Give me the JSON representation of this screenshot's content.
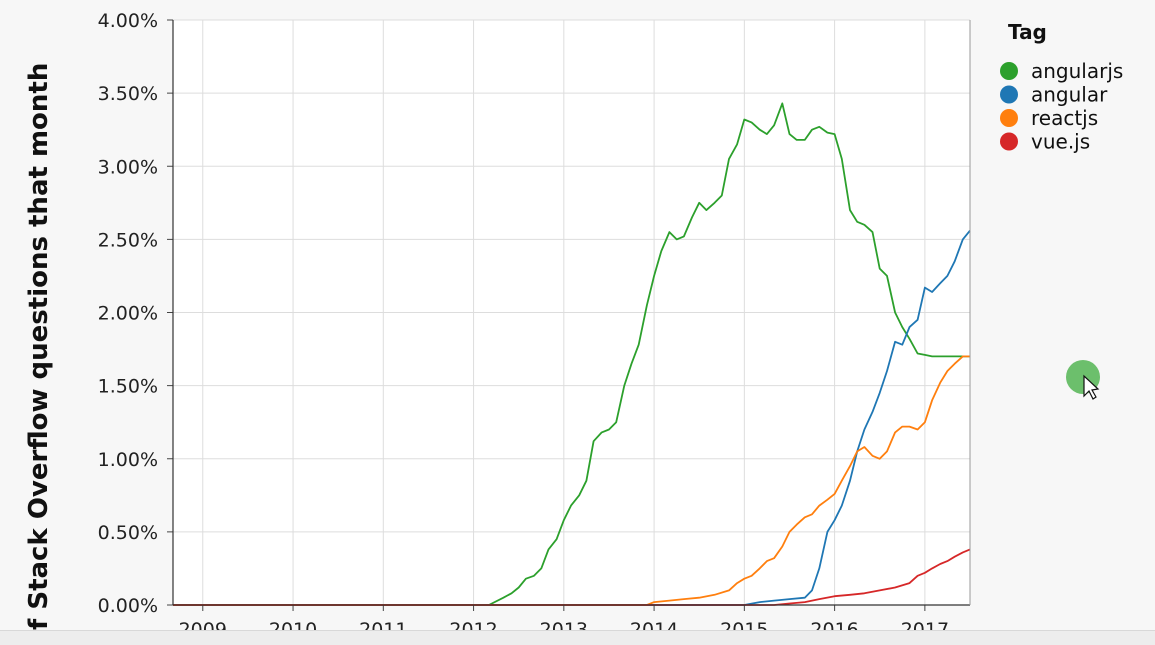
{
  "chart_data": {
    "type": "line",
    "ylabel": "f Stack Overflow questions that month",
    "ylim": [
      0,
      4.0
    ],
    "yticks": [
      "0.00%",
      "0.50%",
      "1.00%",
      "1.50%",
      "2.00%",
      "2.50%",
      "3.00%",
      "3.50%",
      "4.00%"
    ],
    "xlim": [
      2008.67,
      2017.5
    ],
    "xticks": [
      "2009",
      "2010",
      "2011",
      "2012",
      "2013",
      "2014",
      "2015",
      "2016",
      "2017"
    ],
    "grid": true,
    "legend": {
      "title": "Tag",
      "placement": "right"
    },
    "series": [
      {
        "name": "angularjs",
        "color": "#2ca02c",
        "x": [
          2008.67,
          2012.17,
          2012.33,
          2012.42,
          2012.5,
          2012.58,
          2012.67,
          2012.75,
          2012.83,
          2012.92,
          2013.0,
          2013.08,
          2013.17,
          2013.25,
          2013.33,
          2013.42,
          2013.5,
          2013.58,
          2013.67,
          2013.75,
          2013.83,
          2013.92,
          2014.0,
          2014.08,
          2014.17,
          2014.25,
          2014.33,
          2014.42,
          2014.5,
          2014.58,
          2014.67,
          2014.75,
          2014.83,
          2014.92,
          2015.0,
          2015.08,
          2015.17,
          2015.25,
          2015.33,
          2015.42,
          2015.5,
          2015.58,
          2015.67,
          2015.75,
          2015.83,
          2015.92,
          2016.0,
          2016.08,
          2016.17,
          2016.25,
          2016.33,
          2016.42,
          2016.5,
          2016.58,
          2016.67,
          2016.75,
          2016.83,
          2016.92,
          2017.0,
          2017.08,
          2017.17,
          2017.25,
          2017.33,
          2017.42,
          2017.5
        ],
        "y": [
          0,
          0,
          0.05,
          0.08,
          0.12,
          0.18,
          0.2,
          0.25,
          0.38,
          0.45,
          0.58,
          0.68,
          0.75,
          0.85,
          1.12,
          1.18,
          1.2,
          1.25,
          1.5,
          1.65,
          1.78,
          2.05,
          2.25,
          2.42,
          2.55,
          2.5,
          2.52,
          2.65,
          2.75,
          2.7,
          2.75,
          2.8,
          3.05,
          3.15,
          3.32,
          3.3,
          3.25,
          3.22,
          3.28,
          3.43,
          3.22,
          3.18,
          3.18,
          3.25,
          3.27,
          3.23,
          3.22,
          3.05,
          2.7,
          2.62,
          2.6,
          2.55,
          2.3,
          2.25,
          2.0,
          1.9,
          1.82,
          1.72,
          1.71,
          1.7,
          1.7,
          1.7,
          1.7,
          1.7,
          1.7
        ]
      },
      {
        "name": "angular",
        "color": "#1f77b4",
        "x": [
          2008.67,
          2015.0,
          2015.17,
          2015.33,
          2015.5,
          2015.67,
          2015.75,
          2015.83,
          2015.92,
          2016.0,
          2016.08,
          2016.17,
          2016.25,
          2016.33,
          2016.42,
          2016.5,
          2016.58,
          2016.67,
          2016.75,
          2016.83,
          2016.92,
          2017.0,
          2017.08,
          2017.17,
          2017.25,
          2017.33,
          2017.42,
          2017.5
        ],
        "y": [
          0,
          0,
          0.02,
          0.03,
          0.04,
          0.05,
          0.1,
          0.25,
          0.5,
          0.58,
          0.68,
          0.85,
          1.05,
          1.2,
          1.32,
          1.45,
          1.6,
          1.8,
          1.78,
          1.9,
          1.95,
          2.17,
          2.14,
          2.2,
          2.25,
          2.35,
          2.5,
          2.56
        ]
      },
      {
        "name": "reactjs",
        "color": "#ff7f0e",
        "x": [
          2008.67,
          2013.92,
          2014.0,
          2014.17,
          2014.33,
          2014.5,
          2014.67,
          2014.83,
          2014.92,
          2015.0,
          2015.08,
          2015.17,
          2015.25,
          2015.33,
          2015.42,
          2015.5,
          2015.58,
          2015.67,
          2015.75,
          2015.83,
          2015.92,
          2016.0,
          2016.08,
          2016.17,
          2016.25,
          2016.33,
          2016.42,
          2016.5,
          2016.58,
          2016.67,
          2016.75,
          2016.83,
          2016.92,
          2017.0,
          2017.08,
          2017.17,
          2017.25,
          2017.33,
          2017.42,
          2017.5
        ],
        "y": [
          0,
          0,
          0.02,
          0.03,
          0.04,
          0.05,
          0.07,
          0.1,
          0.15,
          0.18,
          0.2,
          0.25,
          0.3,
          0.32,
          0.4,
          0.5,
          0.55,
          0.6,
          0.62,
          0.68,
          0.72,
          0.76,
          0.85,
          0.95,
          1.05,
          1.08,
          1.02,
          1.0,
          1.05,
          1.18,
          1.22,
          1.22,
          1.2,
          1.25,
          1.4,
          1.52,
          1.6,
          1.65,
          1.7,
          1.7
        ]
      },
      {
        "name": "vue.js",
        "color": "#d62728",
        "x": [
          2008.67,
          2015.33,
          2015.5,
          2015.67,
          2015.83,
          2016.0,
          2016.17,
          2016.33,
          2016.5,
          2016.67,
          2016.83,
          2016.92,
          2017.0,
          2017.08,
          2017.17,
          2017.25,
          2017.33,
          2017.42,
          2017.5
        ],
        "y": [
          0,
          0,
          0.01,
          0.02,
          0.04,
          0.06,
          0.07,
          0.08,
          0.1,
          0.12,
          0.15,
          0.2,
          0.22,
          0.25,
          0.28,
          0.3,
          0.33,
          0.36,
          0.38
        ]
      }
    ]
  }
}
